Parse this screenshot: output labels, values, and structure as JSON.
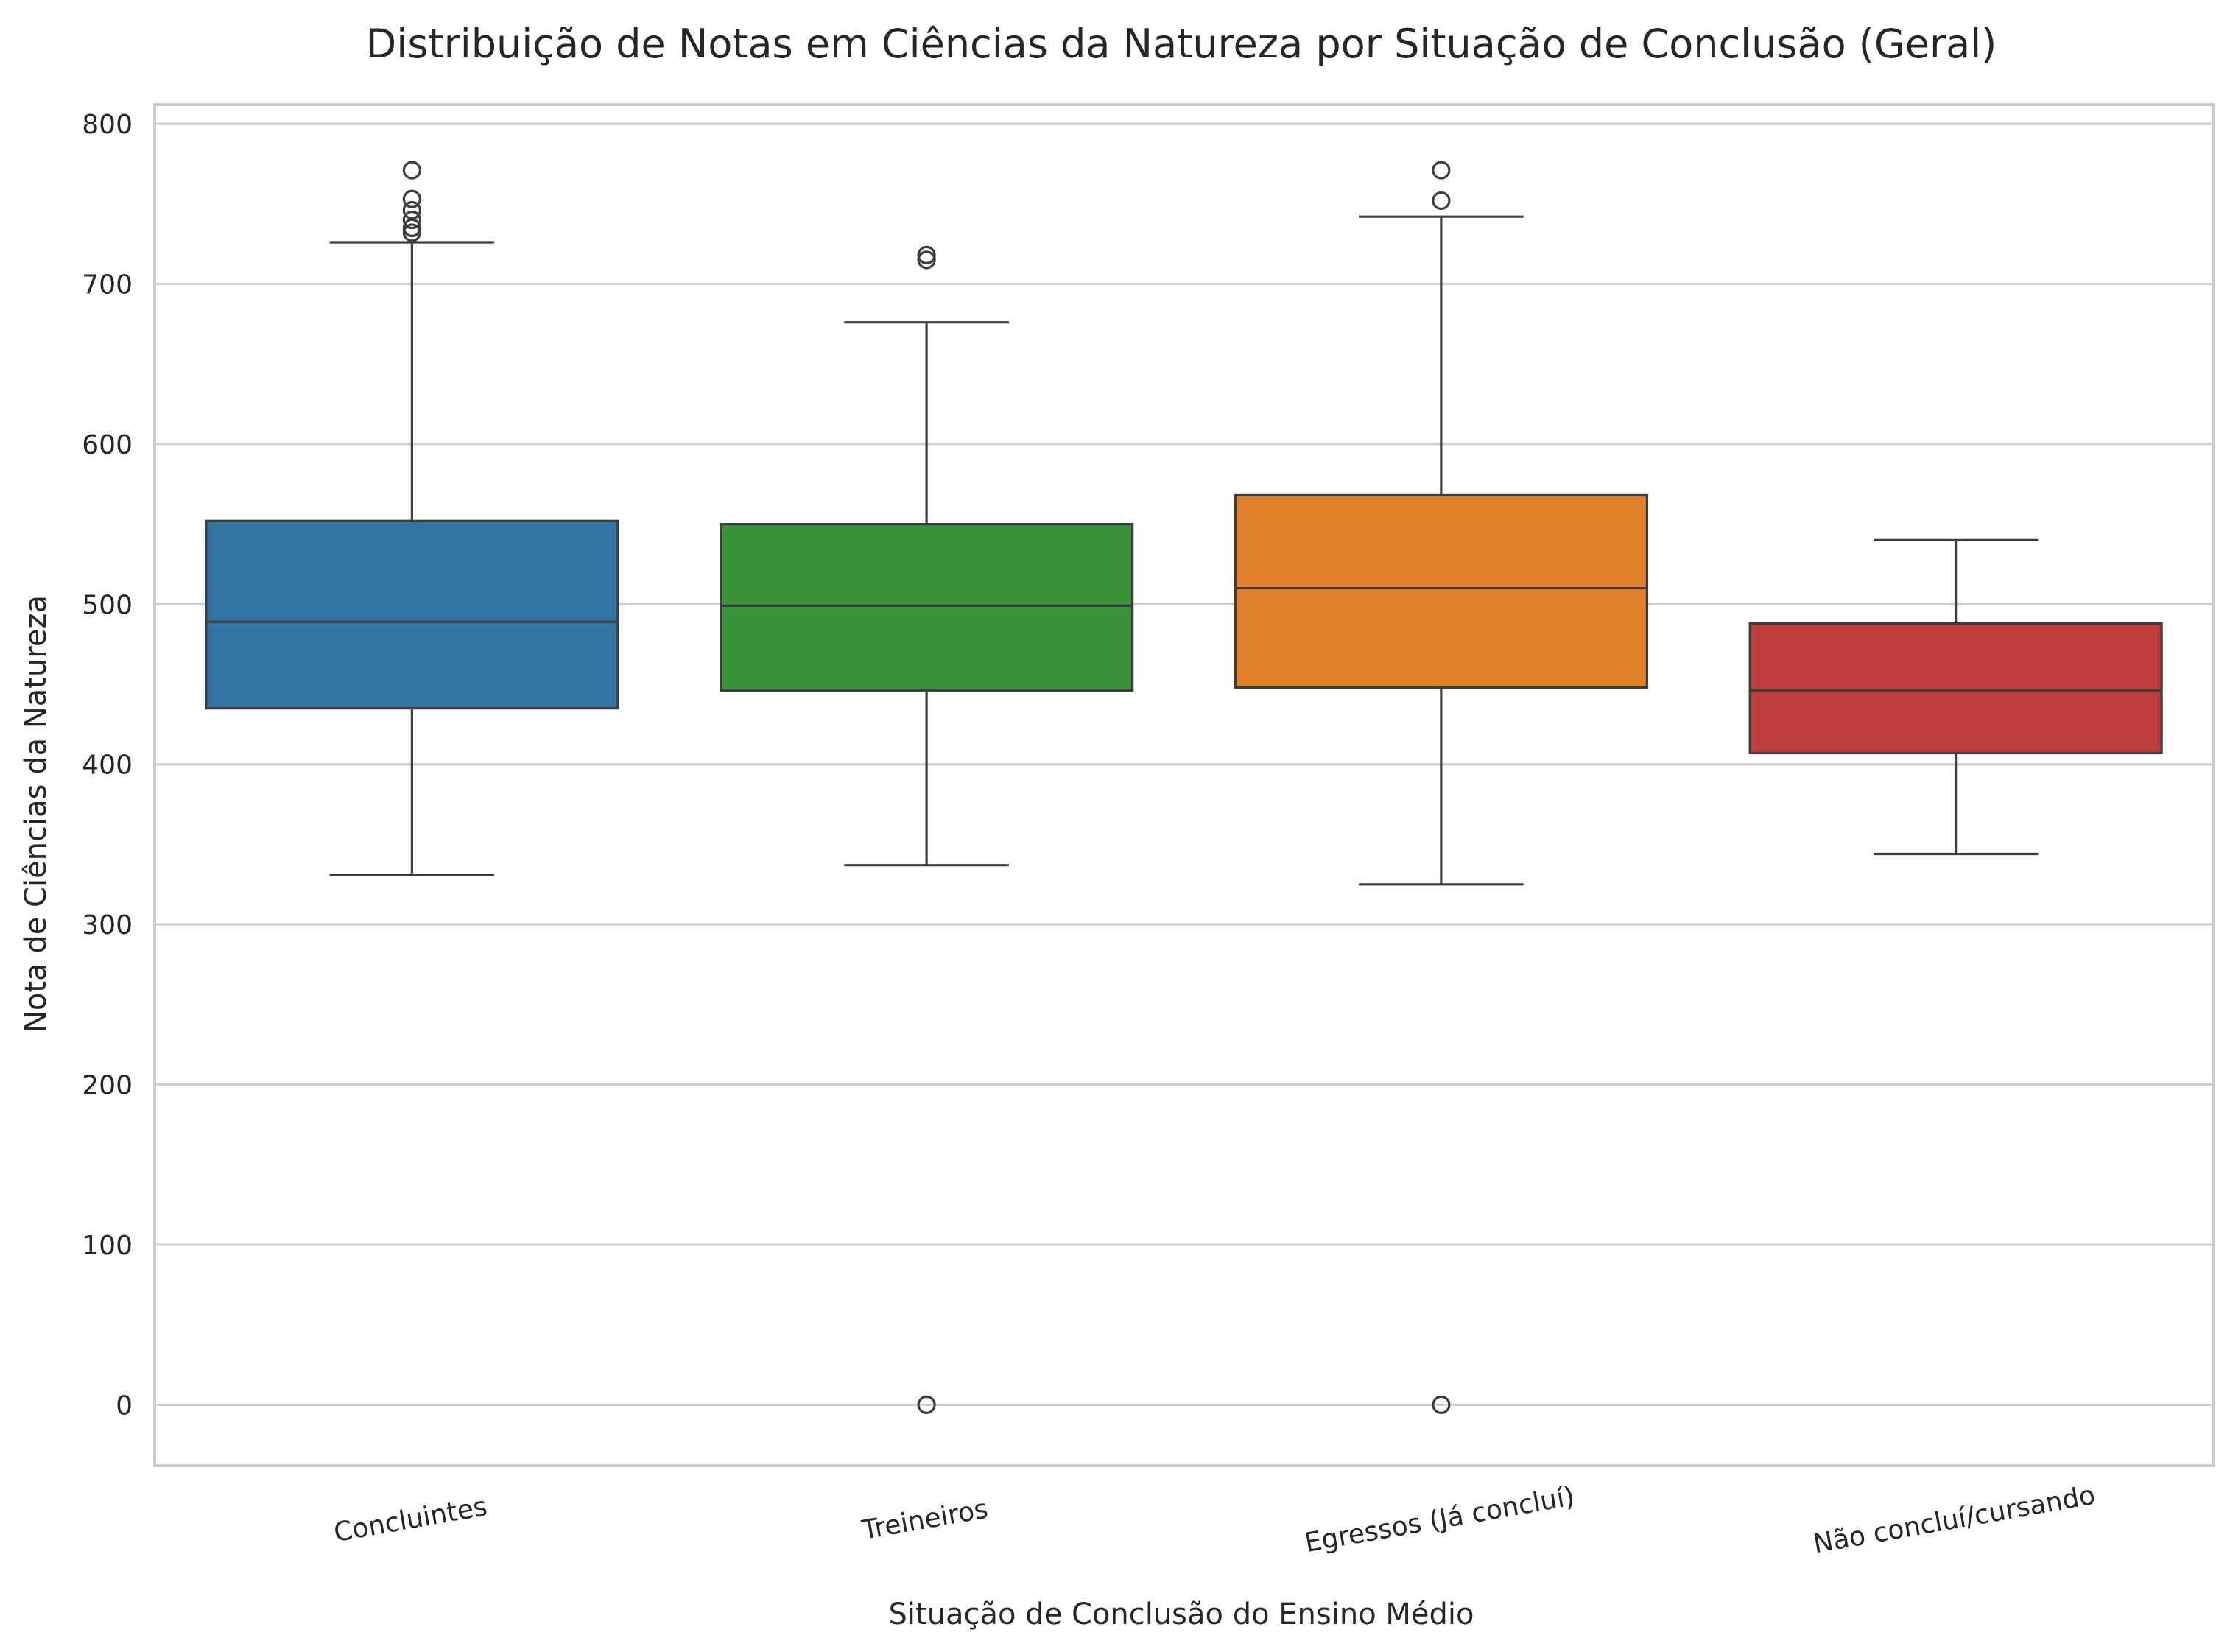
{
  "chart_data": {
    "type": "box",
    "title": "Distribuição de Notas em Ciências da Natureza por Situação de Conclusão (Geral)",
    "xlabel": "Situação de Conclusão do Ensino Médio",
    "ylabel": "Nota de Ciências da Natureza",
    "ylim": [
      -38,
      812
    ],
    "yticks": [
      0,
      100,
      200,
      300,
      400,
      500,
      600,
      700,
      800
    ],
    "grid": true,
    "categories": [
      "Concluintes",
      "Treineiros",
      "Egressos (Já concluí)",
      "Não concluí/cursando"
    ],
    "series": [
      {
        "category": "Concluintes",
        "color": "#3274a1",
        "whisker_low": 331,
        "q1": 435,
        "median": 489,
        "q3": 552,
        "whisker_high": 726,
        "outliers": [
          732,
          735,
          740,
          746,
          753,
          771
        ]
      },
      {
        "category": "Treineiros",
        "color": "#3a923a",
        "whisker_low": 337,
        "q1": 446,
        "median": 499,
        "q3": 550,
        "whisker_high": 676,
        "outliers": [
          0,
          715,
          718
        ]
      },
      {
        "category": "Egressos (Já concluí)",
        "color": "#e1812c",
        "whisker_low": 325,
        "q1": 448,
        "median": 510,
        "q3": 568,
        "whisker_high": 742,
        "outliers": [
          0,
          752,
          771
        ]
      },
      {
        "category": "Não concluí/cursando",
        "color": "#c03d3e",
        "whisker_low": 344,
        "q1": 407,
        "median": 446,
        "q3": 488,
        "whisker_high": 540,
        "outliers": []
      }
    ]
  }
}
